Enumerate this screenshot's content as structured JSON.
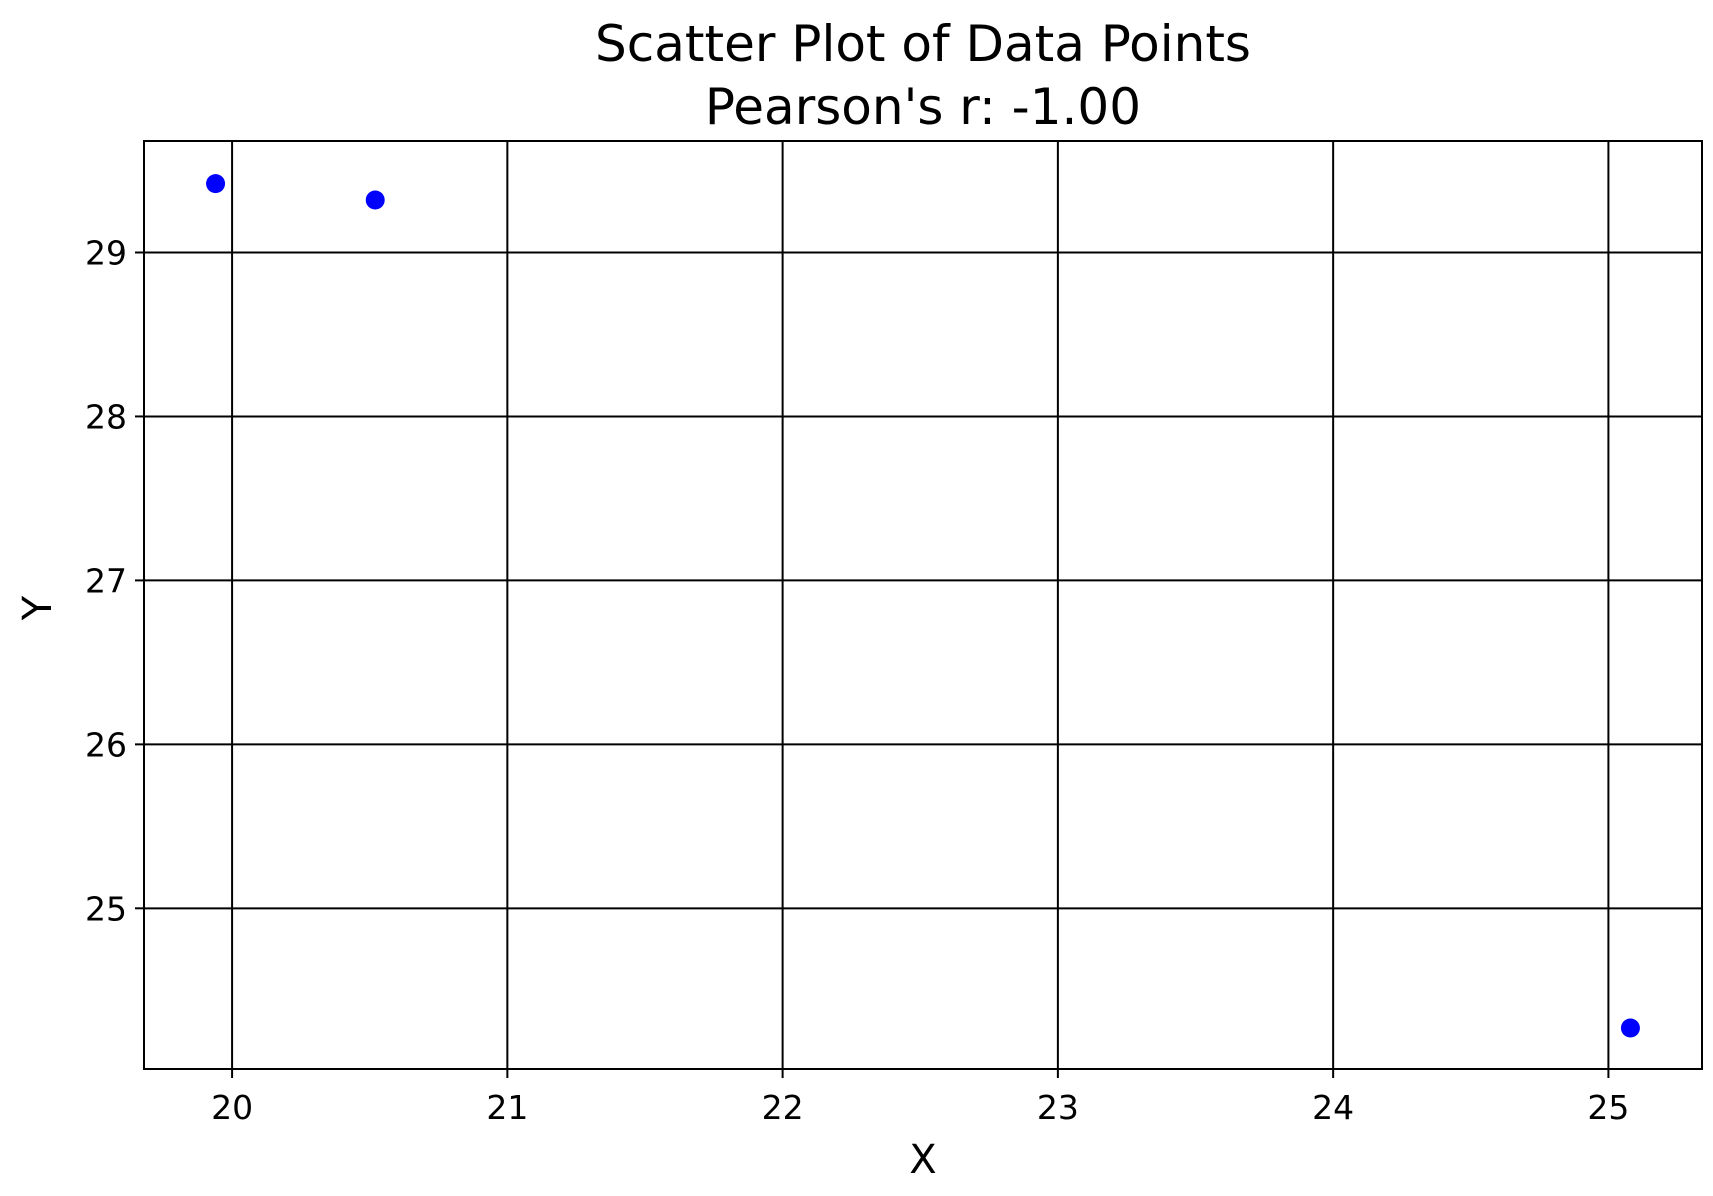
{
  "chart_data": {
    "type": "scatter",
    "title": "Scatter Plot of Data Points",
    "subtitle": "Pearson's r: -1.00",
    "xlabel": "X",
    "ylabel": "Y",
    "xlim": [
      19.68,
      25.34
    ],
    "ylim": [
      24.02,
      29.68
    ],
    "x_ticks": [
      20,
      21,
      22,
      23,
      24,
      25
    ],
    "y_ticks": [
      25,
      26,
      27,
      28,
      29
    ],
    "x_tick_labels": [
      "20",
      "21",
      "22",
      "23",
      "24",
      "25"
    ],
    "y_tick_labels": [
      "25",
      "26",
      "27",
      "28",
      "29"
    ],
    "grid": true,
    "marker_color": "#0000ff",
    "points": [
      {
        "x": 19.94,
        "y": 29.42
      },
      {
        "x": 20.52,
        "y": 29.32
      },
      {
        "x": 25.08,
        "y": 24.27
      }
    ]
  }
}
